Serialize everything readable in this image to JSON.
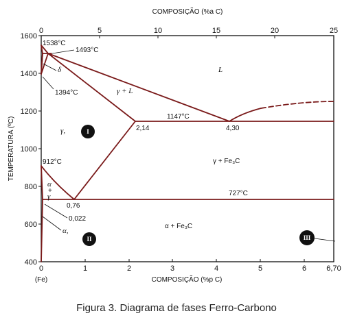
{
  "axes": {
    "top_title": "COMPOSIÇÃO (%a C)",
    "bottom_title": "COMPOSIÇÃO (%p C)",
    "left_title": "TEMPERATURA (ºC)",
    "top_ticks": [
      "0",
      "5",
      "10",
      "15",
      "20",
      "25"
    ],
    "bottom_ticks": [
      "0",
      "1",
      "2",
      "3",
      "4",
      "5",
      "6",
      "6,70"
    ],
    "y_ticks": [
      "400",
      "600",
      "800",
      "1000",
      "1200",
      "1400",
      "1600"
    ],
    "fe_label": "(Fe)"
  },
  "annotations": {
    "t1538": "1538°C",
    "t1493": "1493°C",
    "t1394": "1394°C",
    "t1147": "1147°C",
    "t912": "912°C",
    "t727": "727°C",
    "c214": "2,14",
    "c430": "4,30",
    "c076": "0,76",
    "c0022": "0,022"
  },
  "phases": {
    "L": "L",
    "delta": "δ",
    "gamma_L": "γ + L",
    "gamma": "γ,",
    "gamma_fe3c": "γ + Fe₃C",
    "alpha_gamma_1": "α",
    "alpha_gamma_2": "+",
    "alpha_gamma_3": "γ",
    "alpha": "α,",
    "alpha_fe3c": "α + Fe₃C"
  },
  "regions": {
    "r1": "I",
    "r2": "II",
    "r3": "III"
  },
  "colors": {
    "phase_line": "#7a1a1a",
    "axis": "#111111",
    "marker_fill": "#111111"
  },
  "caption": "Figura 3. Diagrama de fases Ferro-Carbono"
}
